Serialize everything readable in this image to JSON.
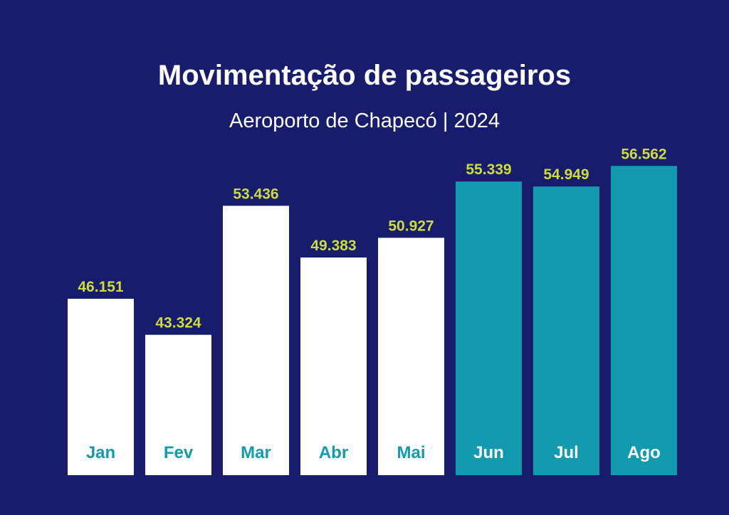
{
  "header": {
    "title": "Movimentação de passageiros",
    "subtitle": "Aeroporto de Chapecó | 2024"
  },
  "colors": {
    "background": "#171d6c",
    "bar_primary": "#ffffff",
    "bar_highlight": "#129aae",
    "value_label": "#cddc3a",
    "label_on_primary": "#129aae",
    "label_on_highlight": "#ffffff"
  },
  "chart_data": {
    "type": "bar",
    "title": "Movimentação de passageiros",
    "subtitle": "Aeroporto de Chapecó | 2024",
    "categories": [
      "Jan",
      "Fev",
      "Mar",
      "Abr",
      "Mai",
      "Jun",
      "Jul",
      "Ago"
    ],
    "values": [
      46151,
      43324,
      53436,
      49383,
      50927,
      55339,
      54949,
      56562
    ],
    "value_labels": [
      "46.151",
      "43.324",
      "53.436",
      "49.383",
      "50.927",
      "55.339",
      "54.949",
      "56.562"
    ],
    "highlighted": [
      false,
      false,
      false,
      false,
      false,
      true,
      true,
      true
    ],
    "xlabel": "",
    "ylabel": "",
    "grid": false,
    "legend": "none",
    "y_axis_visible": false
  }
}
